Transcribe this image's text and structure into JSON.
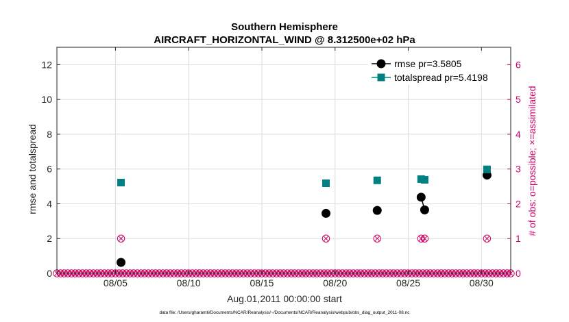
{
  "chart_data": {
    "type": "scatter",
    "title": "Southern Hemisphere",
    "subtitle": "AIRCRAFT_HORIZONTAL_WIND @ 8.312500e+02 hPa",
    "xlabel": "Aug.01,2011 00:00:00 start",
    "ylabel": "rmse and totalspread",
    "y2label": "# of obs: o=possible; ×=assimilated",
    "footnote": "data file: /Users/gharamti/Documents/NCAR/Reanalysis/~/Documents/NCAR/Reanalysis/webpub/obs_diag_output_2011-08.nc",
    "xlim": [
      1.0,
      32.0
    ],
    "ylim": [
      0,
      13
    ],
    "y2lim": [
      0,
      6.5
    ],
    "x_ticks": [
      5,
      10,
      15,
      20,
      25,
      30
    ],
    "x_tick_labels": [
      "08/05",
      "08/10",
      "08/15",
      "08/20",
      "08/25",
      "08/30"
    ],
    "y_ticks": [
      0,
      2,
      4,
      6,
      8,
      10,
      12
    ],
    "y_tick_labels": [
      "0",
      "2",
      "4",
      "6",
      "8",
      "10",
      "12"
    ],
    "y2_ticks": [
      0,
      1,
      2,
      3,
      4,
      5,
      6
    ],
    "y2_tick_labels": [
      "0",
      "1",
      "2",
      "3",
      "4",
      "5",
      "6"
    ],
    "grid": true,
    "legend": {
      "position": "top-right",
      "entries": [
        "rmse pr=3.5805",
        "totalspread pr=5.4198"
      ]
    },
    "series": [
      {
        "name": "rmse pr=3.5805",
        "axis": "left",
        "marker": "circle",
        "color": "#000000",
        "points": [
          [
            5.38,
            0.63
          ],
          [
            19.38,
            3.45
          ],
          [
            22.88,
            3.62
          ],
          [
            25.88,
            4.38
          ],
          [
            26.12,
            3.65
          ],
          [
            30.38,
            5.65
          ]
        ],
        "connected": [
          [
            3,
            4
          ]
        ]
      },
      {
        "name": "totalspread pr=5.4198",
        "axis": "left",
        "marker": "square",
        "color": "#008080",
        "points": [
          [
            5.38,
            5.22
          ],
          [
            19.38,
            5.18
          ],
          [
            22.88,
            5.35
          ],
          [
            25.88,
            5.42
          ],
          [
            26.12,
            5.38
          ],
          [
            30.38,
            5.98
          ]
        ],
        "connected": [
          [
            3,
            4
          ]
        ]
      },
      {
        "name": "obs possible",
        "axis": "right",
        "marker": "circle-open",
        "color": "#cc0066",
        "start": 1.0,
        "step": 0.25,
        "end": 32.0,
        "nonzero": [
          [
            5.38,
            1
          ],
          [
            19.38,
            1
          ],
          [
            22.88,
            1
          ],
          [
            25.88,
            1
          ],
          [
            26.12,
            1
          ],
          [
            30.38,
            1
          ]
        ]
      },
      {
        "name": "obs assimilated",
        "axis": "right",
        "marker": "x",
        "color": "#cc0066",
        "start": 1.0,
        "step": 0.25,
        "end": 32.0,
        "nonzero": [
          [
            5.38,
            1
          ],
          [
            19.38,
            1
          ],
          [
            22.88,
            1
          ],
          [
            25.88,
            1
          ],
          [
            26.12,
            1
          ],
          [
            30.38,
            1
          ]
        ]
      }
    ],
    "colors": {
      "rmse": "#000000",
      "totalspread": "#008080",
      "obs": "#cc0066",
      "grid": "#dcdcdc"
    }
  }
}
